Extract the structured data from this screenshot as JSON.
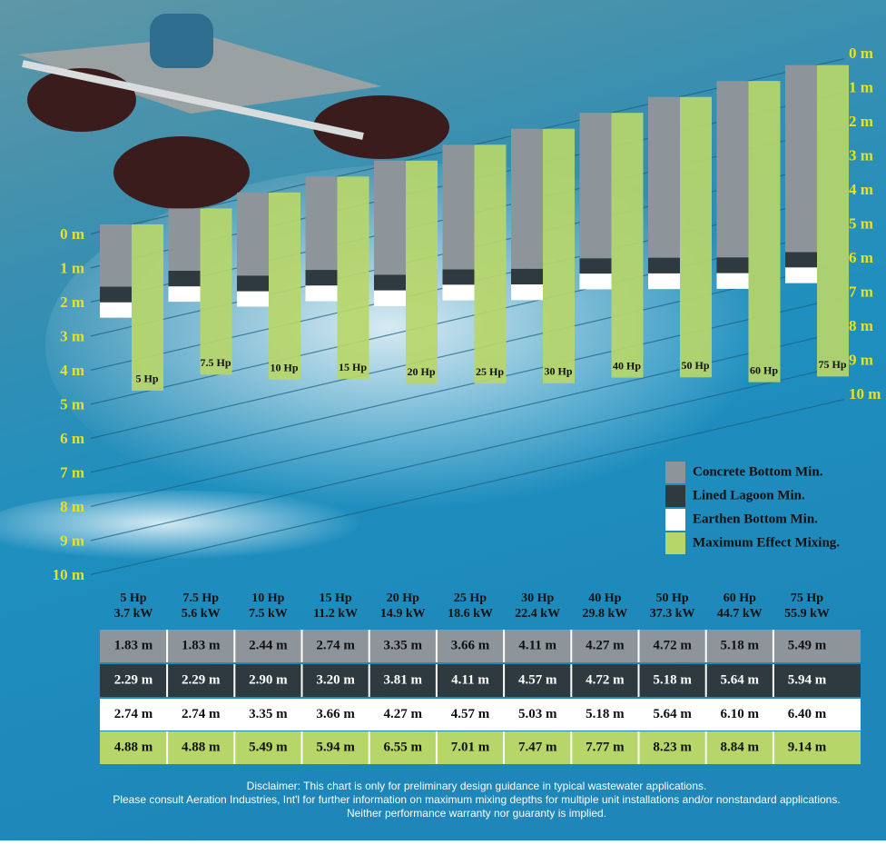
{
  "chart_data": {
    "type": "bar",
    "categories": [
      "5 Hp",
      "7.5 Hp",
      "10 Hp",
      "15 Hp",
      "20 Hp",
      "25 Hp",
      "30 Hp",
      "40 Hp",
      "50 Hp",
      "60 Hp",
      "75 Hp"
    ],
    "power_kw": [
      "3.7 kW",
      "5.6 kW",
      "7.5 kW",
      "11.2 kW",
      "14.9 kW",
      "18.6 kW",
      "22.4 kW",
      "29.8 kW",
      "37.3 kW",
      "44.7 kW",
      "55.9 kW"
    ],
    "series": [
      {
        "name": "Concrete Bottom Min.",
        "color": "#8d959b",
        "values": [
          1.83,
          1.83,
          2.44,
          2.74,
          3.35,
          3.66,
          4.11,
          4.27,
          4.72,
          5.18,
          5.49
        ],
        "value_labels": [
          "1.83 m",
          "1.83 m",
          "2.44 m",
          "2.74 m",
          "3.35 m",
          "3.66 m",
          "4.11 m",
          "4.27 m",
          "4.72 m",
          "5.18 m",
          "5.49 m"
        ]
      },
      {
        "name": "Lined Lagoon Min.",
        "color": "#2e3a3f",
        "values": [
          2.29,
          2.29,
          2.9,
          3.2,
          3.81,
          4.11,
          4.57,
          4.72,
          5.18,
          5.64,
          5.94
        ],
        "value_labels": [
          "2.29 m",
          "2.29 m",
          "2.90 m",
          "3.20 m",
          "3.81 m",
          "4.11 m",
          "4.57 m",
          "4.72 m",
          "5.18 m",
          "5.64 m",
          "5.94 m"
        ]
      },
      {
        "name": "Earthen Bottom Min.",
        "color": "#ffffff",
        "values": [
          2.74,
          2.74,
          3.35,
          3.66,
          4.27,
          4.57,
          5.03,
          5.18,
          5.64,
          6.1,
          6.4
        ],
        "value_labels": [
          "2.74 m",
          "2.74 m",
          "3.35 m",
          "3.66 m",
          "4.27 m",
          "4.57 m",
          "5.03 m",
          "5.18 m",
          "5.64 m",
          "6.10 m",
          "6.40 m"
        ]
      },
      {
        "name": "Maximum Effect Mixing.",
        "color": "#b7d66a",
        "values": [
          4.88,
          4.88,
          5.49,
          5.94,
          6.55,
          7.01,
          7.47,
          7.77,
          8.23,
          8.84,
          9.14
        ],
        "value_labels": [
          "4.88 m",
          "4.88 m",
          "5.49 m",
          "5.94 m",
          "6.55 m",
          "7.01 m",
          "7.47 m",
          "7.77 m",
          "8.23 m",
          "8.84 m",
          "9.14 m"
        ]
      }
    ],
    "ylim": [
      0,
      10
    ],
    "yticks": [
      {
        "value": 0,
        "label": "0 m"
      },
      {
        "value": 1,
        "label": "1 m"
      },
      {
        "value": 2,
        "label": "2 m"
      },
      {
        "value": 3,
        "label": "3 m"
      },
      {
        "value": 4,
        "label": "4 m"
      },
      {
        "value": 5,
        "label": "5 m"
      },
      {
        "value": 6,
        "label": "6 m"
      },
      {
        "value": 7,
        "label": "7 m"
      },
      {
        "value": 8,
        "label": "8 m"
      },
      {
        "value": 9,
        "label": "9 m"
      },
      {
        "value": 10,
        "label": "10 m"
      }
    ],
    "grid": true,
    "tick_color": "#e6e21e",
    "disclaimer": [
      "Disclaimer: This chart is only for preliminary design guidance in typical wastewater applications.",
      "Please consult Aeration Industries, Int'l for further information on maximum mixing depths for multiple unit installations and/or nonstandard applications.",
      "Neither performance warranty nor guaranty is implied."
    ]
  }
}
